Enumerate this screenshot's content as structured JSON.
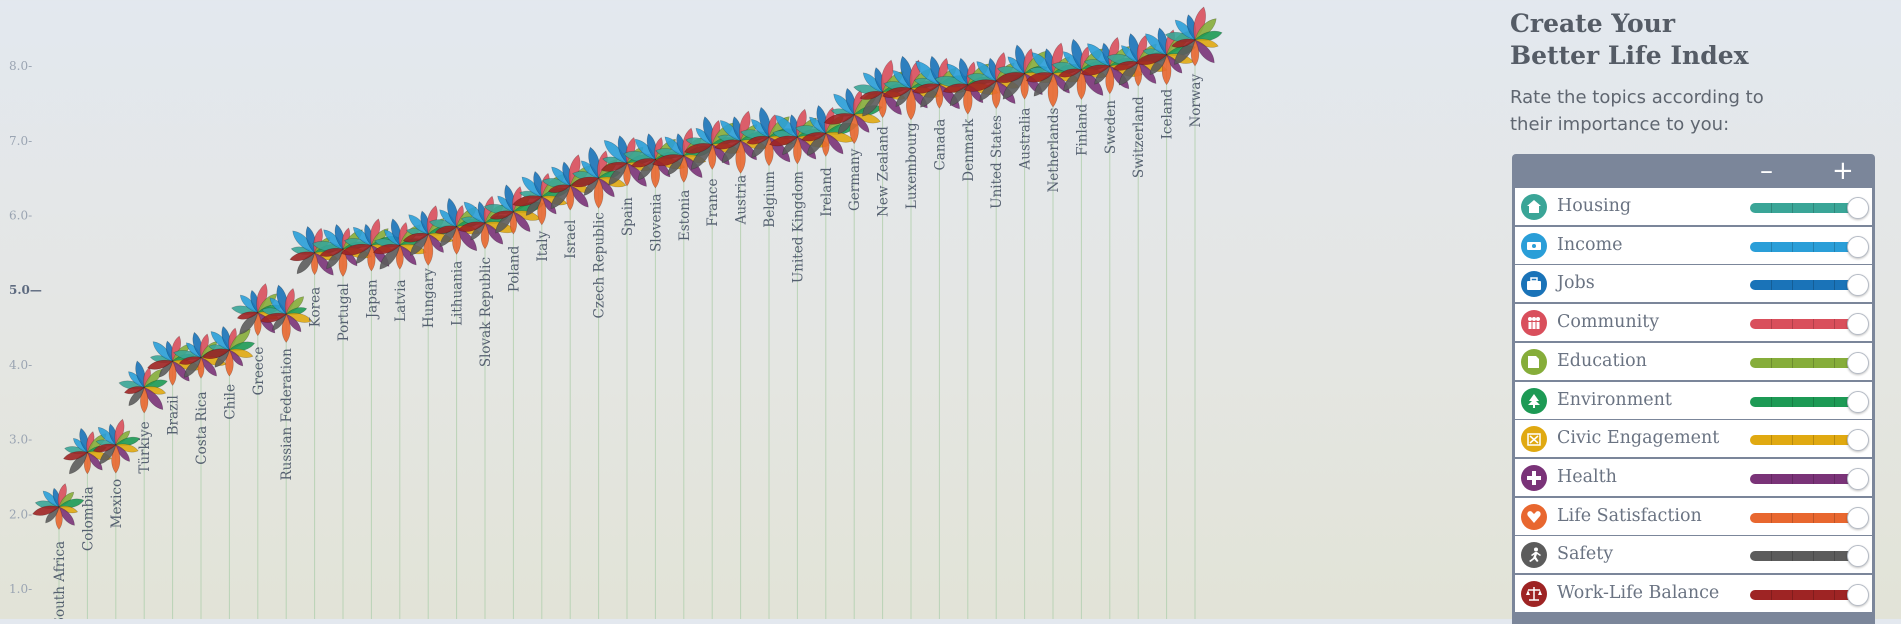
{
  "panel": {
    "title_line1": "Create Your",
    "title_line2": "Better Life Index",
    "subtitle": "Rate the topics according to their importance to you:",
    "minus_label": "–",
    "plus_label": "+",
    "topics": [
      {
        "label": "Housing",
        "color": "#3aa597",
        "icon": "house-icon",
        "value": 1.0
      },
      {
        "label": "Income",
        "color": "#2a9ed8",
        "icon": "banknote-icon",
        "value": 1.0
      },
      {
        "label": "Jobs",
        "color": "#1a73b8",
        "icon": "briefcase-icon",
        "value": 1.0
      },
      {
        "label": "Community",
        "color": "#d94f5c",
        "icon": "people-icon",
        "value": 1.0
      },
      {
        "label": "Education",
        "color": "#86ad3a",
        "icon": "book-icon",
        "value": 1.0
      },
      {
        "label": "Environment",
        "color": "#1d9a55",
        "icon": "tree-icon",
        "value": 1.0
      },
      {
        "label": "Civic Engagement",
        "color": "#e0a911",
        "icon": "ballot-icon",
        "value": 1.0
      },
      {
        "label": "Health",
        "color": "#7a3378",
        "icon": "cross-icon",
        "value": 1.0
      },
      {
        "label": "Life Satisfaction",
        "color": "#e8672f",
        "icon": "heart-icon",
        "value": 1.0
      },
      {
        "label": "Safety",
        "color": "#5c5c5c",
        "icon": "runner-icon",
        "value": 1.0
      },
      {
        "label": "Work-Life Balance",
        "color": "#9e2424",
        "icon": "scales-icon",
        "value": 1.0
      }
    ]
  },
  "chart_data": {
    "type": "scatter",
    "yticks": [
      "1.0",
      "2.0",
      "3.0",
      "4.0",
      "5.0",
      "6.0",
      "7.0",
      "8.0"
    ],
    "ylim": [
      0.6,
      8.75
    ],
    "countries": [
      {
        "name": "South Africa",
        "score": 2.1
      },
      {
        "name": "Colombia",
        "score": 2.83
      },
      {
        "name": "Mexico",
        "score": 2.93
      },
      {
        "name": "Türkiye",
        "score": 3.7
      },
      {
        "name": "Brazil",
        "score": 4.05
      },
      {
        "name": "Costa Rica",
        "score": 4.1
      },
      {
        "name": "Chile",
        "score": 4.2
      },
      {
        "name": "Greece",
        "score": 4.7
      },
      {
        "name": "Russian Federation",
        "score": 4.68
      },
      {
        "name": "Korea",
        "score": 5.5
      },
      {
        "name": "Portugal",
        "score": 5.55
      },
      {
        "name": "Japan",
        "score": 5.6
      },
      {
        "name": "Latvia",
        "score": 5.6
      },
      {
        "name": "Hungary",
        "score": 5.75
      },
      {
        "name": "Lithuania",
        "score": 5.85
      },
      {
        "name": "Slovak Republic",
        "score": 5.9
      },
      {
        "name": "Poland",
        "score": 6.05
      },
      {
        "name": "Italy",
        "score": 6.25
      },
      {
        "name": "Israel",
        "score": 6.4
      },
      {
        "name": "Czech Republic",
        "score": 6.5
      },
      {
        "name": "Spain",
        "score": 6.7
      },
      {
        "name": "Slovenia",
        "score": 6.75
      },
      {
        "name": "Estonia",
        "score": 6.8
      },
      {
        "name": "France",
        "score": 6.95
      },
      {
        "name": "Austria",
        "score": 7.0
      },
      {
        "name": "Belgium",
        "score": 7.05
      },
      {
        "name": "United Kingdom",
        "score": 7.05
      },
      {
        "name": "Ireland",
        "score": 7.1
      },
      {
        "name": "Germany",
        "score": 7.35
      },
      {
        "name": "New Zealand",
        "score": 7.65
      },
      {
        "name": "Luxembourg",
        "score": 7.7
      },
      {
        "name": "Canada",
        "score": 7.75
      },
      {
        "name": "Denmark",
        "score": 7.75
      },
      {
        "name": "United States",
        "score": 7.8
      },
      {
        "name": "Australia",
        "score": 7.9
      },
      {
        "name": "Netherlands",
        "score": 7.9
      },
      {
        "name": "Finland",
        "score": 7.95
      },
      {
        "name": "Sweden",
        "score": 8.0
      },
      {
        "name": "Switzerland",
        "score": 8.05
      },
      {
        "name": "Iceland",
        "score": 8.15
      },
      {
        "name": "Norway",
        "score": 8.35
      }
    ]
  }
}
